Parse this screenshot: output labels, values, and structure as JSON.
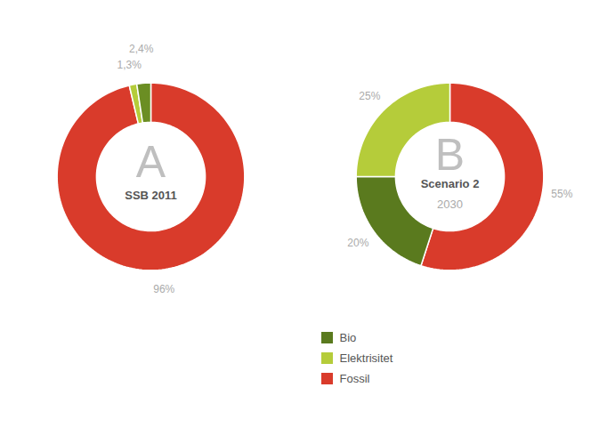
{
  "chart_data": [
    {
      "type": "pie",
      "categories": [
        "Fossil",
        "Elektrisitet",
        "Bio"
      ],
      "values": [
        96.3,
        1.3,
        2.4
      ],
      "value_labels": [
        "96%",
        "1,3%",
        "2,4%"
      ],
      "colors": [
        "#d93b2b",
        "#b5cc3a",
        "#6b8e23"
      ],
      "data_labels": true,
      "annotations": [
        "A",
        "SSB 2011"
      ]
    },
    {
      "type": "pie",
      "categories": [
        "Fossil",
        "Bio",
        "Elektrisitet"
      ],
      "values": [
        55,
        20,
        25
      ],
      "value_labels": [
        "55%",
        "20%",
        "25%"
      ],
      "colors": [
        "#d93b2b",
        "#5a7a1e",
        "#b5cc3a"
      ],
      "data_labels": true,
      "annotations": [
        "B",
        "Scenario 2",
        "2030"
      ],
      "legend": "lower left",
      "series": [
        {
          "name": "Bio",
          "color": "#5a7a1e"
        },
        {
          "name": "Elektrisitet",
          "color": "#b5cc3a"
        },
        {
          "name": "Fossil",
          "color": "#d93b2b"
        }
      ]
    }
  ]
}
